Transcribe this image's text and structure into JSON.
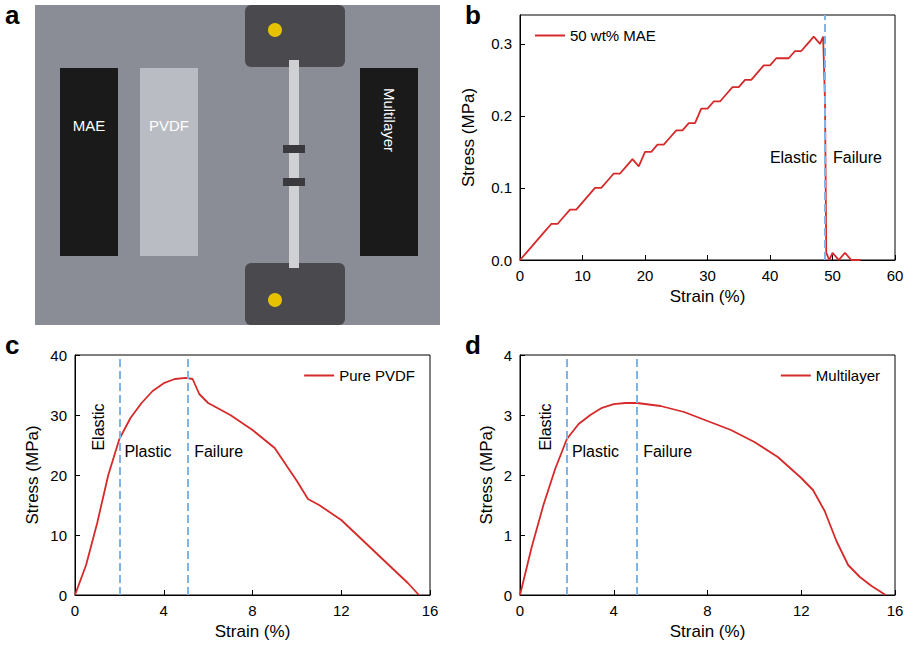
{
  "photo": {
    "panel": "a",
    "labels": [
      "MAE",
      "PVDF",
      "Multilayer"
    ]
  },
  "chart_data": [
    {
      "panel": "b",
      "type": "line",
      "x_label": "Strain (%)",
      "y_label": "Stress (MPa)",
      "x": [
        0,
        1,
        2,
        3,
        4,
        5,
        6,
        7,
        8,
        9,
        10,
        11,
        12,
        13,
        14,
        15,
        16,
        17,
        18,
        19,
        20,
        21,
        22,
        23,
        24,
        25,
        26,
        27,
        28,
        29,
        30,
        31,
        32,
        33,
        34,
        35,
        36,
        37,
        38,
        39,
        40,
        41,
        42,
        43,
        44,
        45,
        46,
        47,
        48,
        48.5,
        48.8,
        49,
        49.5,
        50,
        51,
        52,
        53,
        54.5
      ],
      "series": [
        {
          "name": "50 wt% MAE",
          "color": "#d62a2a",
          "values": [
            0.0,
            0.01,
            0.02,
            0.03,
            0.04,
            0.05,
            0.05,
            0.06,
            0.07,
            0.07,
            0.08,
            0.09,
            0.1,
            0.1,
            0.11,
            0.12,
            0.12,
            0.13,
            0.14,
            0.13,
            0.15,
            0.15,
            0.16,
            0.16,
            0.17,
            0.18,
            0.18,
            0.19,
            0.19,
            0.21,
            0.21,
            0.22,
            0.22,
            0.23,
            0.24,
            0.24,
            0.25,
            0.25,
            0.26,
            0.27,
            0.27,
            0.28,
            0.28,
            0.28,
            0.29,
            0.29,
            0.3,
            0.31,
            0.3,
            0.31,
            0.22,
            0.01,
            0.0,
            0.01,
            0.0,
            0.01,
            0.0,
            0.0
          ]
        }
      ],
      "xlim": [
        0,
        60
      ],
      "xticks": [
        0,
        10,
        20,
        30,
        40,
        50,
        60
      ],
      "ylim": [
        0,
        0.34
      ],
      "yticks": [
        {
          "value": 0,
          "label": "0.0"
        },
        {
          "value": 0.1,
          "label": "0.1"
        },
        {
          "value": 0.2,
          "label": "0.2"
        },
        {
          "value": 0.3,
          "label": "0.3"
        }
      ],
      "grid": false,
      "legend": "upper left",
      "boundaries": [
        48.8
      ],
      "region_labels": [
        "Elastic",
        "Failure"
      ]
    },
    {
      "panel": "c",
      "type": "line",
      "x_label": "Strain (%)",
      "y_label": "Stress (MPa)",
      "x": [
        0,
        0.5,
        1,
        1.5,
        2,
        2.5,
        3,
        3.5,
        4,
        4.5,
        5,
        5.3,
        5.6,
        6,
        7,
        8,
        9,
        10,
        10.5,
        11,
        12,
        13,
        14,
        15,
        15.5
      ],
      "series": [
        {
          "name": "Pure PVDF",
          "color": "#d62a2a",
          "values": [
            0,
            5,
            12,
            20,
            26,
            29.5,
            32,
            34,
            35.3,
            36,
            36.2,
            36,
            33.5,
            32,
            30,
            27.5,
            24.5,
            19,
            16,
            15,
            12.5,
            9,
            5.5,
            2,
            0
          ]
        }
      ],
      "xlim": [
        0,
        16
      ],
      "xticks": [
        0,
        4,
        8,
        12,
        16
      ],
      "ylim": [
        0,
        40
      ],
      "yticks": [
        0,
        10,
        20,
        30,
        40
      ],
      "grid": false,
      "legend": "upper right",
      "boundaries": [
        2,
        5.1
      ],
      "region_labels": [
        "Elastic",
        "Plastic",
        "Failure"
      ]
    },
    {
      "panel": "d",
      "type": "line",
      "x_label": "Strain (%)",
      "y_label": "Stress (MPa)",
      "x": [
        0,
        0.5,
        1,
        1.5,
        2,
        2.5,
        3,
        3.5,
        4,
        4.5,
        5,
        6,
        7,
        8,
        9,
        10,
        11,
        12,
        12.5,
        13,
        13.5,
        14,
        14.5,
        15,
        15.6
      ],
      "series": [
        {
          "name": "Multilayer",
          "color": "#d62a2a",
          "values": [
            0,
            0.8,
            1.5,
            2.1,
            2.6,
            2.85,
            3.0,
            3.12,
            3.18,
            3.2,
            3.2,
            3.15,
            3.05,
            2.9,
            2.75,
            2.55,
            2.3,
            1.95,
            1.75,
            1.4,
            0.9,
            0.5,
            0.3,
            0.15,
            0
          ]
        }
      ],
      "xlim": [
        0,
        16
      ],
      "xticks": [
        0,
        4,
        8,
        12,
        16
      ],
      "ylim": [
        0,
        4
      ],
      "yticks": [
        0,
        1,
        2,
        3,
        4
      ],
      "grid": false,
      "legend": "upper right",
      "boundaries": [
        2,
        5
      ],
      "region_labels": [
        "Elastic",
        "Plastic",
        "Failure"
      ]
    }
  ]
}
